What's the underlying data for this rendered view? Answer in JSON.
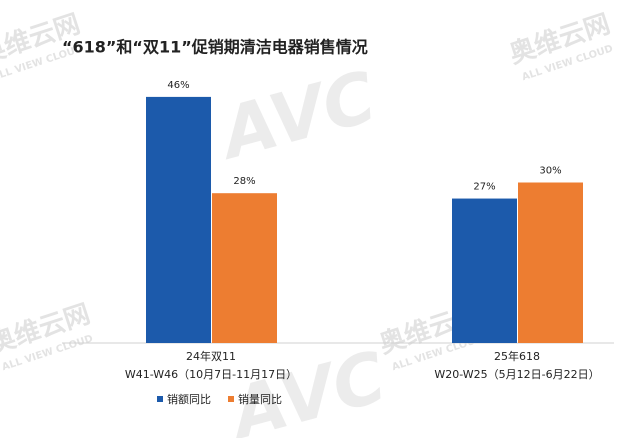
{
  "chart_data": {
    "type": "bar",
    "title": "“618”和“双11”促销期清洁电器销售情况",
    "categories": [
      [
        "24年双11",
        "W41-W46（10月7日-11月17日）"
      ],
      [
        "25年618",
        "W20-W25（5月12日-6月22日）"
      ]
    ],
    "series": [
      {
        "name": "销额同比",
        "color": "#1c5aab",
        "values": [
          46,
          27
        ],
        "value_labels": [
          "46%",
          "27%"
        ]
      },
      {
        "name": "销量同比",
        "color": "#ed7d31",
        "values": [
          28,
          30
        ],
        "value_labels": [
          "28%",
          "30%"
        ]
      }
    ],
    "ylim": [
      0,
      50
    ],
    "grid": false,
    "legend": "bottom",
    "watermark": [
      "奥维云网",
      "ALL VIEW CLOUD",
      "AVC"
    ]
  }
}
